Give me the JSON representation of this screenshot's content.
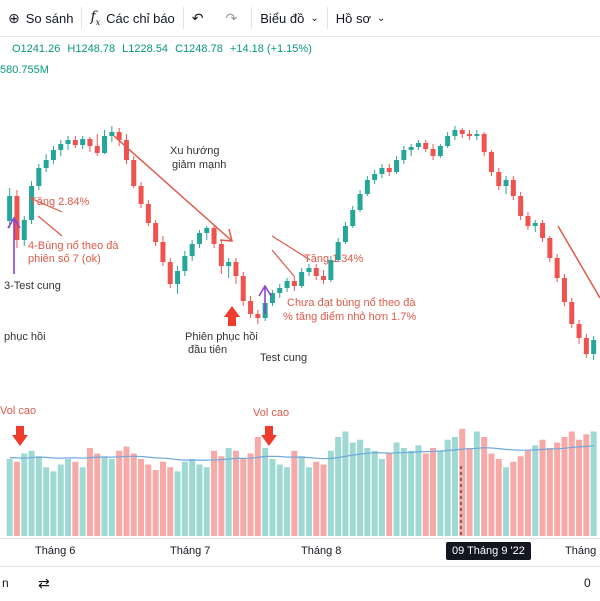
{
  "toolbar": {
    "compare_label": "So sánh",
    "indicators_label": "Các chỉ báo",
    "chart_label": "Biểu đồ",
    "profile_label": "Hồ sơ"
  },
  "legend": {
    "open": "O1241.26",
    "high": "H1248.78",
    "low": "L1228.54",
    "close": "C1248.78",
    "change": "+14.18 (+1.15%)",
    "volume": "580.755M"
  },
  "annotations": {
    "xu_huong": "Xu hướng",
    "giam_manh": "giảm mạnh",
    "tang_284": "Tăng 2.84%",
    "bung_no_1": "4-Bùng nổ theo đà",
    "bung_no_2": "phiên số 7 (ok)",
    "test_cung_3": "3-Test cung",
    "phuc_hoi_left": "phục hồi",
    "phien_phuc_hoi_1": "Phiên phục hồi",
    "phien_phuc_hoi_2": "đầu tiên",
    "test_cung": "Test cung",
    "tang_134": "Tăng 1.34%",
    "chua_dat_1": "Chưa đạt bùng nổ theo đà",
    "chua_dat_2": "% tăng điểm nhỏ hơn 1.7%",
    "vol_cao_left": "Vol cao",
    "vol_cao_mid": "Vol cao"
  },
  "time_axis": {
    "ticks": [
      "Tháng 6",
      "Tháng 7",
      "Tháng 8",
      "Tháng"
    ],
    "cursor": "09 Tháng 9 '22"
  },
  "bottom": {
    "left_label": "n",
    "right_label": "0"
  },
  "colors": {
    "up": "#26a69a",
    "down": "#ef5350",
    "vol_up": "#9fd9d3",
    "vol_down": "#f7a9a7",
    "vol_ma": "#6fa8dc",
    "legend_green": "#089981",
    "annotation_red": "#e05a4a",
    "arrow_purple": "#8e44c9"
  },
  "chart_data": {
    "type": "candlestick",
    "ohlc": [
      [
        1205,
        1238,
        1198,
        1230
      ],
      [
        1230,
        1236,
        1178,
        1186
      ],
      [
        1186,
        1210,
        1180,
        1206
      ],
      [
        1206,
        1245,
        1202,
        1240
      ],
      [
        1240,
        1262,
        1236,
        1258
      ],
      [
        1258,
        1272,
        1254,
        1266
      ],
      [
        1266,
        1280,
        1262,
        1276
      ],
      [
        1276,
        1286,
        1270,
        1282
      ],
      [
        1282,
        1290,
        1276,
        1286
      ],
      [
        1286,
        1290,
        1278,
        1281
      ],
      [
        1281,
        1290,
        1277,
        1287
      ],
      [
        1287,
        1289,
        1274,
        1280
      ],
      [
        1280,
        1292,
        1270,
        1273
      ],
      [
        1273,
        1296,
        1272,
        1290
      ],
      [
        1290,
        1300,
        1284,
        1294
      ],
      [
        1294,
        1298,
        1280,
        1286
      ],
      [
        1286,
        1292,
        1262,
        1266
      ],
      [
        1266,
        1270,
        1238,
        1240
      ],
      [
        1240,
        1244,
        1218,
        1222
      ],
      [
        1222,
        1226,
        1200,
        1203
      ],
      [
        1203,
        1206,
        1180,
        1184
      ],
      [
        1184,
        1190,
        1160,
        1164
      ],
      [
        1164,
        1168,
        1138,
        1142
      ],
      [
        1142,
        1160,
        1132,
        1155
      ],
      [
        1155,
        1175,
        1150,
        1170
      ],
      [
        1170,
        1186,
        1165,
        1182
      ],
      [
        1182,
        1196,
        1178,
        1193
      ],
      [
        1193,
        1200,
        1186,
        1198
      ],
      [
        1198,
        1201,
        1178,
        1182
      ],
      [
        1182,
        1186,
        1152,
        1160
      ],
      [
        1160,
        1168,
        1148,
        1164
      ],
      [
        1164,
        1168,
        1142,
        1150
      ],
      [
        1150,
        1154,
        1120,
        1125
      ],
      [
        1125,
        1130,
        1108,
        1112
      ],
      [
        1112,
        1116,
        1102,
        1108
      ],
      [
        1108,
        1126,
        1105,
        1123
      ],
      [
        1123,
        1136,
        1120,
        1133
      ],
      [
        1133,
        1142,
        1128,
        1138
      ],
      [
        1138,
        1148,
        1134,
        1145
      ],
      [
        1145,
        1150,
        1135,
        1140
      ],
      [
        1140,
        1158,
        1138,
        1154
      ],
      [
        1154,
        1162,
        1150,
        1158
      ],
      [
        1158,
        1162,
        1146,
        1150
      ],
      [
        1150,
        1156,
        1142,
        1146
      ],
      [
        1146,
        1170,
        1144,
        1166
      ],
      [
        1166,
        1188,
        1164,
        1184
      ],
      [
        1184,
        1204,
        1182,
        1200
      ],
      [
        1200,
        1220,
        1198,
        1216
      ],
      [
        1216,
        1236,
        1214,
        1232
      ],
      [
        1232,
        1250,
        1230,
        1246
      ],
      [
        1246,
        1256,
        1242,
        1252
      ],
      [
        1252,
        1262,
        1248,
        1258
      ],
      [
        1258,
        1262,
        1250,
        1254
      ],
      [
        1254,
        1270,
        1252,
        1266
      ],
      [
        1266,
        1280,
        1262,
        1276
      ],
      [
        1276,
        1282,
        1270,
        1279
      ],
      [
        1279,
        1286,
        1276,
        1283
      ],
      [
        1283,
        1286,
        1274,
        1277
      ],
      [
        1277,
        1282,
        1266,
        1270
      ],
      [
        1270,
        1282,
        1268,
        1280
      ],
      [
        1280,
        1294,
        1278,
        1290
      ],
      [
        1290,
        1300,
        1286,
        1296
      ],
      [
        1296,
        1298,
        1288,
        1292
      ],
      [
        1292,
        1296,
        1286,
        1290
      ],
      [
        1290,
        1296,
        1286,
        1292
      ],
      [
        1292,
        1294,
        1270,
        1274
      ],
      [
        1274,
        1276,
        1250,
        1254
      ],
      [
        1254,
        1258,
        1236,
        1240
      ],
      [
        1240,
        1250,
        1232,
        1246
      ],
      [
        1246,
        1250,
        1226,
        1230
      ],
      [
        1230,
        1234,
        1206,
        1210
      ],
      [
        1210,
        1214,
        1196,
        1200
      ],
      [
        1200,
        1206,
        1194,
        1203
      ],
      [
        1203,
        1206,
        1184,
        1188
      ],
      [
        1188,
        1190,
        1164,
        1168
      ],
      [
        1168,
        1172,
        1144,
        1148
      ],
      [
        1148,
        1152,
        1120,
        1124
      ],
      [
        1124,
        1128,
        1098,
        1102
      ],
      [
        1102,
        1106,
        1082,
        1088
      ],
      [
        1088,
        1092,
        1068,
        1072
      ],
      [
        1072,
        1090,
        1066,
        1086
      ]
    ],
    "volumes": [
      560,
      540,
      600,
      620,
      580,
      500,
      470,
      520,
      560,
      540,
      500,
      640,
      600,
      580,
      560,
      620,
      650,
      600,
      560,
      520,
      480,
      540,
      500,
      470,
      540,
      560,
      520,
      500,
      620,
      580,
      640,
      620,
      560,
      600,
      720,
      640,
      560,
      520,
      500,
      620,
      580,
      500,
      540,
      520,
      620,
      720,
      760,
      680,
      700,
      640,
      620,
      560,
      600,
      680,
      640,
      620,
      660,
      600,
      640,
      620,
      700,
      720,
      780,
      640,
      760,
      720,
      600,
      560,
      500,
      540,
      580,
      620,
      660,
      700,
      640,
      680,
      720,
      760,
      700,
      740,
      760
    ],
    "volume_ma": [
      570,
      568,
      566,
      570,
      574,
      572,
      568,
      566,
      568,
      568,
      566,
      570,
      574,
      574,
      574,
      576,
      580,
      580,
      578,
      574,
      568,
      566,
      562,
      556,
      552,
      552,
      552,
      552,
      554,
      556,
      560,
      564,
      564,
      566,
      572,
      578,
      580,
      578,
      574,
      574,
      574,
      570,
      566,
      562,
      564,
      570,
      580,
      588,
      596,
      602,
      606,
      604,
      602,
      604,
      606,
      608,
      612,
      614,
      616,
      618,
      622,
      626,
      632,
      634,
      638,
      642,
      640,
      636,
      630,
      626,
      624,
      624,
      626,
      630,
      632,
      634,
      638,
      644,
      648,
      652,
      656
    ],
    "x_ticks": [
      "Tháng 6",
      "Tháng 7",
      "Tháng 8",
      "Tháng"
    ],
    "cursor_label": "09 Tháng 9 '22",
    "title": ""
  }
}
